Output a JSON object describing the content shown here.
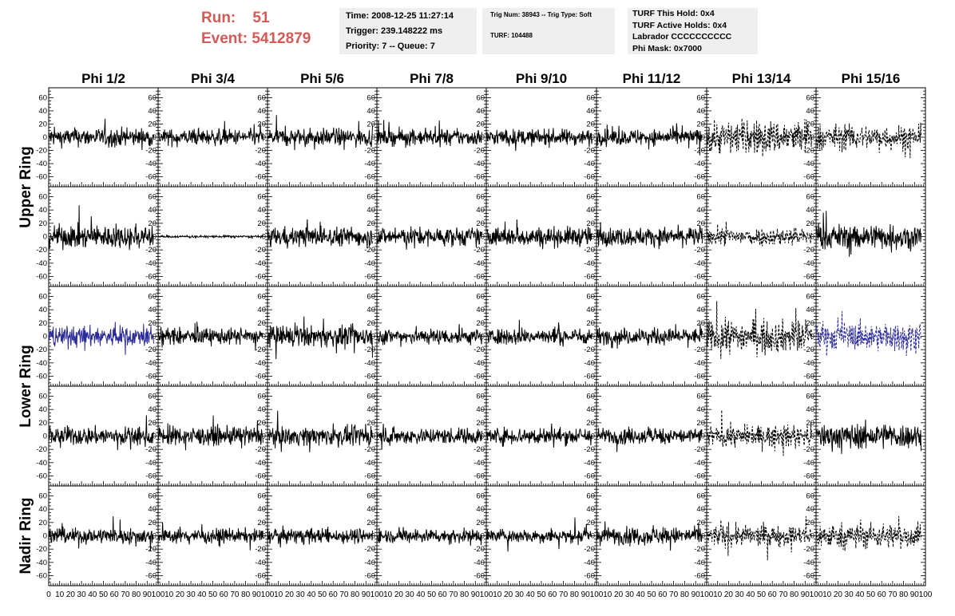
{
  "header": {
    "run_label": "Run:",
    "run_value": "51",
    "event_label": "Event:",
    "event_value": "5412879",
    "time": "Time: 2008-12-25 11:27:14",
    "trigger": "Trigger: 239.148222 ms",
    "priority": "Priority: 7 -- Queue: 7",
    "trig_line": "Trig Num: 38943 -- Trig Type: Soft",
    "turf": "TURF: 104488",
    "turf_this_hold": "TURF This Hold: 0x4",
    "turf_active_holds": "TURF Active Holds: 0x4",
    "labrador": "Labrador CCCCCCCCCC",
    "phi_mask": "Phi Mask: 0x7000"
  },
  "chart_data": {
    "type": "line",
    "columns": [
      "Phi 1/2",
      "Phi 3/4",
      "Phi 5/6",
      "Phi 7/8",
      "Phi 9/10",
      "Phi 11/12",
      "Phi 13/14",
      "Phi 15/16"
    ],
    "rows": [
      "Upper Ring",
      "Upper Ring",
      "Lower Ring",
      "Lower Ring",
      "Nadir Ring"
    ],
    "row_labels": [
      {
        "text": "Upper Ring",
        "spans": [
          0,
          1
        ]
      },
      {
        "text": "Lower Ring",
        "spans": [
          2,
          3
        ]
      },
      {
        "text": "Nadir Ring",
        "spans": [
          4,
          4
        ]
      }
    ],
    "xlim": [
      0,
      100
    ],
    "ylim": [
      -75,
      75
    ],
    "yticks": [
      -60,
      -40,
      -20,
      0,
      20,
      40,
      60
    ],
    "xticks": [
      0,
      10,
      20,
      30,
      40,
      50,
      60,
      70,
      80,
      90,
      100
    ],
    "samples_per_trace": 260,
    "trace_x_range": [
      0,
      96
    ],
    "colors": {
      "normal": "#000000",
      "triggered": "#2b2b9a"
    },
    "panels": [
      [
        {
          "amp": 16,
          "style": "solid",
          "color": "normal"
        },
        {
          "amp": 14,
          "style": "solid",
          "color": "normal"
        },
        {
          "amp": 15,
          "style": "solid",
          "color": "normal"
        },
        {
          "amp": 14,
          "style": "solid",
          "color": "normal"
        },
        {
          "amp": 14,
          "style": "solid",
          "color": "normal"
        },
        {
          "amp": 14,
          "style": "solid",
          "color": "normal"
        },
        {
          "amp": 30,
          "style": "dashed",
          "color": "normal"
        },
        {
          "amp": 22,
          "style": "dashed",
          "color": "normal"
        }
      ],
      [
        {
          "amp": 20,
          "style": "solid",
          "color": "normal"
        },
        {
          "amp": 2,
          "style": "solid",
          "color": "normal"
        },
        {
          "amp": 17,
          "style": "solid",
          "color": "normal"
        },
        {
          "amp": 16,
          "style": "solid",
          "color": "normal"
        },
        {
          "amp": 17,
          "style": "solid",
          "color": "normal"
        },
        {
          "amp": 16,
          "style": "solid",
          "color": "normal"
        },
        {
          "amp": 16,
          "style": "dashed",
          "color": "normal"
        },
        {
          "amp": 22,
          "style": "solid",
          "color": "normal"
        }
      ],
      [
        {
          "amp": 18,
          "style": "solid",
          "color": "triggered"
        },
        {
          "amp": 14,
          "style": "solid",
          "color": "normal"
        },
        {
          "amp": 18,
          "style": "solid",
          "color": "normal"
        },
        {
          "amp": 14,
          "style": "solid",
          "color": "normal"
        },
        {
          "amp": 14,
          "style": "solid",
          "color": "normal"
        },
        {
          "amp": 14,
          "style": "solid",
          "color": "normal"
        },
        {
          "amp": 28,
          "style": "dashed",
          "color": "normal"
        },
        {
          "amp": 24,
          "style": "dashed",
          "color": "triggered"
        }
      ],
      [
        {
          "amp": 16,
          "style": "solid",
          "color": "normal"
        },
        {
          "amp": 16,
          "style": "solid",
          "color": "normal"
        },
        {
          "amp": 16,
          "style": "solid",
          "color": "normal"
        },
        {
          "amp": 14,
          "style": "solid",
          "color": "normal"
        },
        {
          "amp": 15,
          "style": "solid",
          "color": "normal"
        },
        {
          "amp": 14,
          "style": "solid",
          "color": "normal"
        },
        {
          "amp": 18,
          "style": "dashed",
          "color": "normal"
        },
        {
          "amp": 22,
          "style": "solid",
          "color": "normal"
        }
      ],
      [
        {
          "amp": 14,
          "style": "solid",
          "color": "normal"
        },
        {
          "amp": 12,
          "style": "solid",
          "color": "normal"
        },
        {
          "amp": 13,
          "style": "solid",
          "color": "normal"
        },
        {
          "amp": 12,
          "style": "solid",
          "color": "normal"
        },
        {
          "amp": 12,
          "style": "solid",
          "color": "normal"
        },
        {
          "amp": 15,
          "style": "solid",
          "color": "normal"
        },
        {
          "amp": 18,
          "style": "dashed",
          "color": "normal"
        },
        {
          "amp": 22,
          "style": "dashed",
          "color": "normal"
        }
      ]
    ]
  }
}
